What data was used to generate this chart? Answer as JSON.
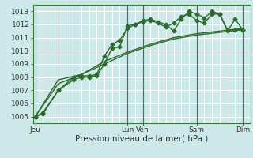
{
  "xlabel": "Pression niveau de la mer( hPa )",
  "ylim": [
    1004.5,
    1013.5
  ],
  "yticks": [
    1005,
    1006,
    1007,
    1008,
    1009,
    1010,
    1011,
    1012,
    1013
  ],
  "bg_color": "#cce8e8",
  "grid_color": "#b8d8d8",
  "line_color": "#2d6a2d",
  "xtick_labels": [
    "Jeu",
    "Lun",
    "Ven",
    "Sam",
    "Dim"
  ],
  "xtick_positions": [
    0,
    12,
    14,
    21,
    27
  ],
  "vline_positions": [
    0,
    12,
    14,
    21,
    27
  ],
  "xlim": [
    -0.3,
    28
  ],
  "series1_x": [
    0,
    1,
    3,
    5,
    6,
    7,
    8,
    9,
    10,
    11,
    12,
    13,
    14,
    15,
    16,
    17,
    18,
    19,
    20,
    21,
    22,
    23,
    24,
    25,
    26,
    27
  ],
  "series1_y": [
    1005.0,
    1005.3,
    1007.0,
    1007.8,
    1008.0,
    1008.0,
    1008.1,
    1009.0,
    1010.2,
    1010.3,
    1011.9,
    1012.0,
    1012.2,
    1012.3,
    1012.1,
    1011.8,
    1012.1,
    1012.6,
    1012.8,
    1012.3,
    1012.1,
    1012.8,
    1012.8,
    1011.5,
    1012.4,
    1011.6
  ],
  "series2_x": [
    0,
    1,
    3,
    5,
    6,
    7,
    8,
    9,
    10,
    11,
    12,
    13,
    14,
    15,
    16,
    17,
    18,
    19,
    20,
    21,
    22,
    23,
    24,
    25,
    26,
    27
  ],
  "series2_y": [
    1005.0,
    1005.2,
    1007.0,
    1008.0,
    1008.1,
    1008.1,
    1008.2,
    1009.6,
    1010.5,
    1010.8,
    1011.7,
    1012.0,
    1012.3,
    1012.4,
    1012.2,
    1012.0,
    1011.5,
    1012.4,
    1013.0,
    1012.8,
    1012.5,
    1013.0,
    1012.8,
    1011.6,
    1011.6,
    1011.6
  ],
  "series3_x": [
    0,
    3,
    6,
    9,
    12,
    15,
    18,
    21,
    24,
    27
  ],
  "series3_y": [
    1005.0,
    1007.5,
    1008.2,
    1009.2,
    1009.9,
    1010.5,
    1011.0,
    1011.3,
    1011.5,
    1011.7
  ],
  "series4_x": [
    0,
    3,
    6,
    9,
    12,
    15,
    18,
    21,
    24,
    27
  ],
  "series4_y": [
    1005.0,
    1007.8,
    1008.2,
    1009.0,
    1009.8,
    1010.4,
    1010.9,
    1011.2,
    1011.4,
    1011.6
  ]
}
